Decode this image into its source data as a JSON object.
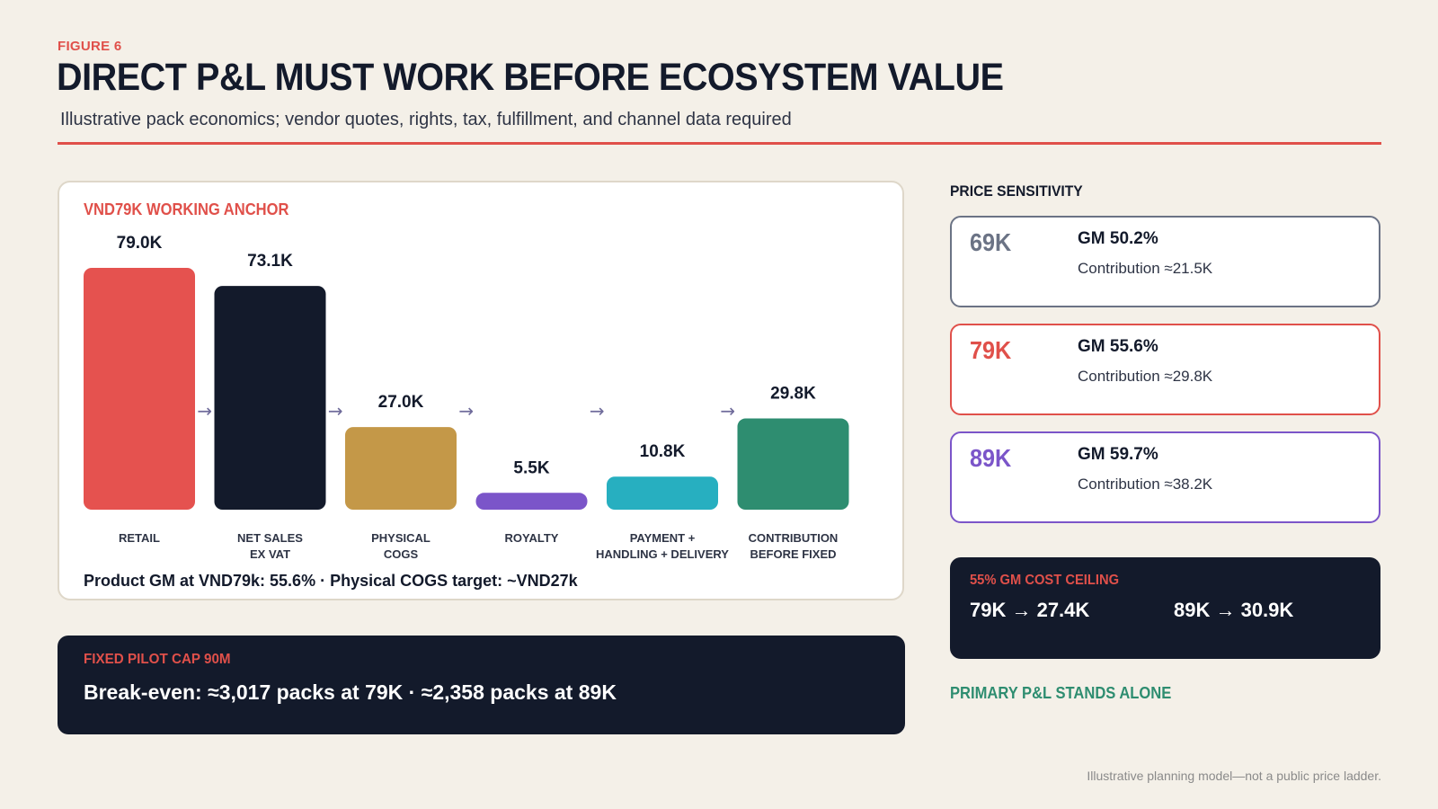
{
  "figure_label": "FIGURE 6",
  "title": "DIRECT P&L MUST WORK BEFORE ECOSYSTEM VALUE",
  "subtitle": "Illustrative pack economics; vendor quotes, rights, tax, fulfillment, and channel data required",
  "waterfall": {
    "heading": "VND79K WORKING ANCHOR",
    "note": "Product GM at VND79k: 55.6%  ·  Physical COGS target: ~VND27k"
  },
  "chart_data": {
    "type": "bar",
    "categories": [
      "RETAIL",
      "NET SALES\nEX VAT",
      "PHYSICAL\nCOGS",
      "ROYALTY",
      "PAYMENT +\nHANDLING + DELIVERY",
      "CONTRIBUTION\nBEFORE FIXED"
    ],
    "values": [
      79.0,
      73.1,
      27.0,
      5.5,
      10.8,
      29.8
    ],
    "value_labels": [
      "79.0K",
      "73.1K",
      "27.0K",
      "5.5K",
      "10.8K",
      "29.8K"
    ],
    "colors": [
      "#e5524f",
      "#131a2b",
      "#c49848",
      "#7b55c9",
      "#27afc0",
      "#2e8d70"
    ],
    "ylim": [
      0,
      79
    ],
    "connector": "→",
    "grid": false
  },
  "fixed_cap": {
    "heading": "FIXED PILOT CAP  90M",
    "text": "Break-even: ≈3,017 packs at 79K  ·  ≈2,358 packs at 89K"
  },
  "price_sensitivity": {
    "heading": "PRICE SENSITIVITY",
    "cards": [
      {
        "price": "69K",
        "gm": "GM  50.2%",
        "contribution": "Contribution  ≈21.5K",
        "color": "#6b7385"
      },
      {
        "price": "79K",
        "gm": "GM  55.6%",
        "contribution": "Contribution  ≈29.8K",
        "color": "#e0504a"
      },
      {
        "price": "89K",
        "gm": "GM  59.7%",
        "contribution": "Contribution  ≈38.2K",
        "color": "#7b55c9"
      }
    ]
  },
  "cost_ceiling": {
    "heading": "55% GM COST CEILING",
    "left": "79K → 27.4K",
    "right": "89K → 30.9K"
  },
  "stands_alone": "PRIMARY P&L STANDS ALONE",
  "footnote": "Illustrative planning model—not a public price ladder."
}
